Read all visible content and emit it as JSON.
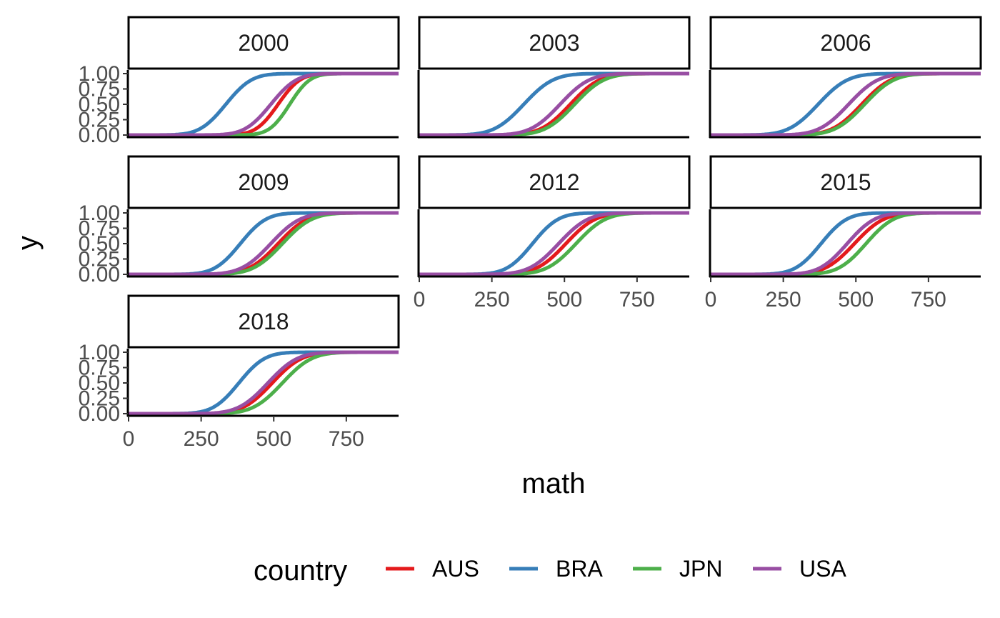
{
  "chart_data": {
    "type": "line",
    "facet_variable": "year",
    "panels": [
      "2000",
      "2003",
      "2006",
      "2009",
      "2012",
      "2015",
      "2018"
    ],
    "xlabel": "math",
    "ylabel": "y",
    "xlim": [
      0,
      930
    ],
    "ylim": [
      0,
      1
    ],
    "x_ticks": [
      "0",
      "250",
      "500",
      "750"
    ],
    "y_ticks": [
      "0.00",
      "0.25",
      "0.50",
      "0.75",
      "1.00"
    ],
    "x_tick_values": [
      0,
      250,
      500,
      750
    ],
    "y_tick_values": [
      0,
      0.25,
      0.5,
      0.75,
      1
    ],
    "grid": false,
    "legend": {
      "title": "country",
      "position": "bottom"
    },
    "series": [
      {
        "name": "AUS",
        "color": "#E41A1C"
      },
      {
        "name": "BRA",
        "color": "#377EB8"
      },
      {
        "name": "JPN",
        "color": "#4DAF4A"
      },
      {
        "name": "USA",
        "color": "#984EA3"
      }
    ],
    "curves": {
      "2000": {
        "AUS": {
          "median": 515,
          "sd": 60
        },
        "BRA": {
          "median": 335,
          "sd": 70
        },
        "JPN": {
          "median": 555,
          "sd": 55
        },
        "USA": {
          "median": 490,
          "sd": 70
        }
      },
      "2003": {
        "AUS": {
          "median": 520,
          "sd": 80
        },
        "BRA": {
          "median": 360,
          "sd": 80
        },
        "JPN": {
          "median": 535,
          "sd": 80
        },
        "USA": {
          "median": 485,
          "sd": 80
        }
      },
      "2006": {
        "AUS": {
          "median": 520,
          "sd": 80
        },
        "BRA": {
          "median": 370,
          "sd": 80
        },
        "JPN": {
          "median": 530,
          "sd": 80
        },
        "USA": {
          "median": 475,
          "sd": 80
        }
      },
      "2009": {
        "AUS": {
          "median": 515,
          "sd": 80
        },
        "BRA": {
          "median": 385,
          "sd": 70
        },
        "JPN": {
          "median": 530,
          "sd": 80
        },
        "USA": {
          "median": 490,
          "sd": 80
        }
      },
      "2012": {
        "AUS": {
          "median": 505,
          "sd": 80
        },
        "BRA": {
          "median": 390,
          "sd": 70
        },
        "JPN": {
          "median": 540,
          "sd": 80
        },
        "USA": {
          "median": 480,
          "sd": 80
        }
      },
      "2015": {
        "AUS": {
          "median": 495,
          "sd": 80
        },
        "BRA": {
          "median": 380,
          "sd": 70
        },
        "JPN": {
          "median": 535,
          "sd": 75
        },
        "USA": {
          "median": 470,
          "sd": 75
        }
      },
      "2018": {
        "AUS": {
          "median": 495,
          "sd": 80
        },
        "BRA": {
          "median": 380,
          "sd": 70
        },
        "JPN": {
          "median": 530,
          "sd": 80
        },
        "USA": {
          "median": 480,
          "sd": 80
        }
      }
    }
  }
}
